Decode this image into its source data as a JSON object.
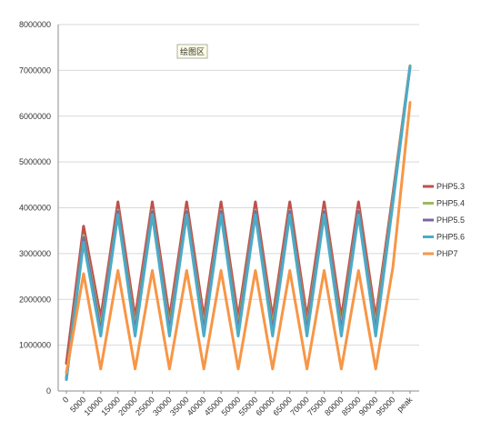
{
  "chart_data": {
    "type": "line",
    "annotation": "绘图区",
    "ylim": [
      0,
      8000000
    ],
    "y_ticks": [
      "0",
      "1000000",
      "2000000",
      "3000000",
      "4000000",
      "5000000",
      "6000000",
      "7000000",
      "8000000"
    ],
    "categories": [
      "0",
      "5000",
      "10000",
      "15000",
      "20000",
      "25000",
      "30000",
      "35000",
      "40000",
      "45000",
      "50000",
      "55000",
      "60000",
      "65000",
      "70000",
      "75000",
      "80000",
      "85000",
      "90000",
      "95000",
      "peak"
    ],
    "grid": true,
    "legend_position": "right",
    "series": [
      {
        "name": "PHP5.3",
        "color": "#c0504d",
        "values": [
          600000,
          3600000,
          1600000,
          4130000,
          1600000,
          4130000,
          1600000,
          4130000,
          1600000,
          4130000,
          1600000,
          4130000,
          1600000,
          4130000,
          1600000,
          4130000,
          1600000,
          4130000,
          1600000,
          4300000,
          7100000
        ]
      },
      {
        "name": "PHP5.4",
        "color": "#9bbb59",
        "values": [
          300000,
          3400000,
          1400000,
          3950000,
          1400000,
          3950000,
          1400000,
          3950000,
          1400000,
          3950000,
          1400000,
          3950000,
          1400000,
          3950000,
          1400000,
          3950000,
          1400000,
          3950000,
          1400000,
          4200000,
          7100000
        ]
      },
      {
        "name": "PHP5.5",
        "color": "#8064a2",
        "values": [
          250000,
          3350000,
          1300000,
          3920000,
          1300000,
          3920000,
          1300000,
          3920000,
          1300000,
          3920000,
          1300000,
          3920000,
          1300000,
          3920000,
          1300000,
          3920000,
          1300000,
          3920000,
          1300000,
          4150000,
          7080000
        ]
      },
      {
        "name": "PHP5.6",
        "color": "#4bacc6",
        "values": [
          250000,
          3250000,
          1200000,
          3850000,
          1200000,
          3850000,
          1200000,
          3850000,
          1200000,
          3850000,
          1200000,
          3850000,
          1200000,
          3850000,
          1200000,
          3850000,
          1200000,
          3850000,
          1200000,
          4100000,
          7080000
        ]
      },
      {
        "name": "PHP7",
        "color": "#f79646",
        "values": [
          400000,
          2560000,
          480000,
          2630000,
          480000,
          2630000,
          480000,
          2630000,
          480000,
          2630000,
          480000,
          2630000,
          480000,
          2630000,
          480000,
          2630000,
          480000,
          2630000,
          480000,
          2700000,
          6300000
        ]
      }
    ]
  }
}
